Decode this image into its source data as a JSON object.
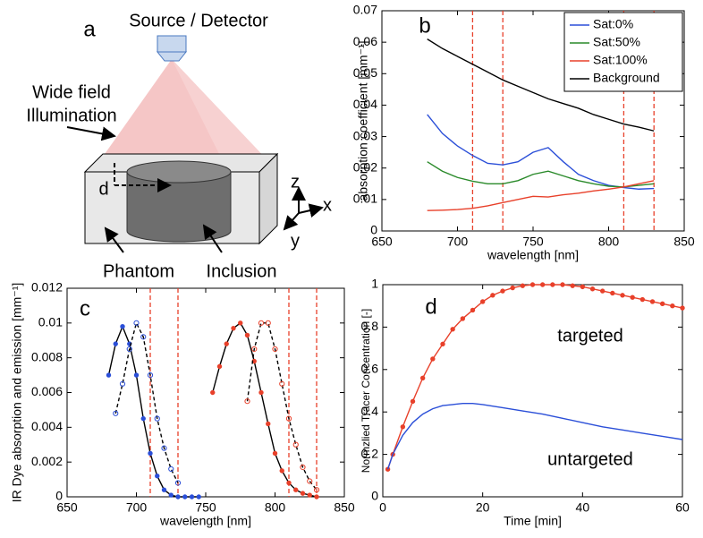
{
  "diagram": {
    "panel": "a",
    "source": "Source / Detector",
    "illumination": [
      "Wide field",
      "Illumination"
    ],
    "depth": "d",
    "phantom": "Phantom",
    "inclusion": "Inclusion",
    "axes": [
      "z",
      "x",
      "y"
    ]
  },
  "chart_data": [
    {
      "type": "line",
      "panel": "b",
      "xlabel": "wavelength [nm]",
      "ylabel": "absorption coefficient [mm⁻¹]",
      "xlim": [
        650,
        850
      ],
      "xticks": [
        650,
        700,
        750,
        800,
        850
      ],
      "ylim": [
        0,
        0.07
      ],
      "yticks": [
        0,
        0.01,
        0.02,
        0.03,
        0.04,
        0.05,
        0.06,
        0.07
      ],
      "vlines": [
        710,
        730,
        810,
        830
      ],
      "vline_color": "#e8402a",
      "legend": "upper right",
      "x": [
        680,
        690,
        700,
        710,
        720,
        730,
        740,
        750,
        760,
        770,
        780,
        790,
        800,
        810,
        820,
        830
      ],
      "series": [
        {
          "name": "Sat:0%",
          "color": "#2b4fd8",
          "values": [
            0.037,
            0.031,
            0.027,
            0.024,
            0.0215,
            0.021,
            0.022,
            0.025,
            0.0265,
            0.022,
            0.018,
            0.016,
            0.0145,
            0.0138,
            0.0133,
            0.0135
          ]
        },
        {
          "name": "Sat:50%",
          "color": "#2a8a2a",
          "values": [
            0.022,
            0.019,
            0.017,
            0.0158,
            0.015,
            0.015,
            0.016,
            0.018,
            0.019,
            0.0175,
            0.016,
            0.015,
            0.0142,
            0.014,
            0.0145,
            0.015
          ]
        },
        {
          "name": "Sat:100%",
          "color": "#e8402a",
          "values": [
            0.0065,
            0.0066,
            0.0068,
            0.0072,
            0.008,
            0.009,
            0.01,
            0.011,
            0.0108,
            0.0115,
            0.012,
            0.0127,
            0.0133,
            0.014,
            0.015,
            0.016
          ]
        },
        {
          "name": "Background",
          "color": "#000000",
          "values": [
            0.061,
            0.058,
            0.0555,
            0.053,
            0.0505,
            0.048,
            0.046,
            0.044,
            0.042,
            0.0405,
            0.039,
            0.037,
            0.0355,
            0.034,
            0.033,
            0.0318
          ]
        }
      ]
    },
    {
      "type": "line",
      "panel": "c",
      "xlabel": "wavelength [nm]",
      "ylabel": "IR Dye absorption and emission [mm⁻¹]",
      "xlim": [
        650,
        850
      ],
      "xticks": [
        650,
        700,
        750,
        800,
        850
      ],
      "ylim": [
        0,
        0.012
      ],
      "yticks": [
        0,
        0.002,
        0.004,
        0.006,
        0.008,
        0.01,
        0.012
      ],
      "vlines": [
        710,
        730,
        810,
        830
      ],
      "vline_color": "#e8402a",
      "series": [
        {
          "color": "#2b4fd8",
          "line_color": "#000000",
          "marker": "dot",
          "x": [
            680,
            685,
            690,
            695,
            700,
            705,
            710,
            715,
            720,
            725,
            730,
            735,
            740,
            745
          ],
          "values": [
            0.007,
            0.0088,
            0.0098,
            0.0088,
            0.007,
            0.0045,
            0.0025,
            0.0012,
            0.0004,
            0.0001,
            0,
            0,
            0,
            0
          ]
        },
        {
          "color": "#2b4fd8",
          "line_color": "#000000",
          "marker": "circle",
          "dash": true,
          "x": [
            685,
            690,
            695,
            700,
            705,
            710,
            715,
            720,
            725,
            730
          ],
          "values": [
            0.0048,
            0.0065,
            0.0085,
            0.01,
            0.0092,
            0.007,
            0.0045,
            0.0028,
            0.0016,
            0.0008
          ]
        },
        {
          "color": "#e8402a",
          "line_color": "#000000",
          "marker": "dot",
          "x": [
            755,
            760,
            765,
            770,
            775,
            780,
            785,
            790,
            795,
            800,
            805,
            810,
            815,
            820,
            825,
            830
          ],
          "values": [
            0.006,
            0.0075,
            0.0088,
            0.0097,
            0.01,
            0.0093,
            0.0078,
            0.006,
            0.0042,
            0.0025,
            0.0015,
            0.0008,
            0.0004,
            0.0002,
            0.0001,
            0
          ]
        },
        {
          "color": "#e8402a",
          "line_color": "#000000",
          "marker": "circle",
          "dash": true,
          "x": [
            780,
            785,
            790,
            795,
            800,
            805,
            810,
            815,
            820,
            825,
            830
          ],
          "values": [
            0.0055,
            0.0085,
            0.01,
            0.01,
            0.0085,
            0.0065,
            0.0045,
            0.003,
            0.0017,
            0.0009,
            0.0004
          ]
        }
      ]
    },
    {
      "type": "line",
      "panel": "d",
      "xlabel": "Time [min]",
      "ylabel": "Normzlied Tracer Concentration [-]",
      "xlim": [
        0,
        60
      ],
      "xticks": [
        0,
        20,
        40,
        60
      ],
      "ylim": [
        0,
        1
      ],
      "yticks": [
        0,
        0.2,
        0.4,
        0.6,
        0.8,
        1
      ],
      "annotations": [
        "targeted",
        "untargeted"
      ],
      "series": [
        {
          "color": "#e8402a",
          "marker": "dot",
          "x": [
            1,
            2,
            4,
            6,
            8,
            10,
            12,
            14,
            16,
            18,
            20,
            22,
            24,
            26,
            28,
            30,
            32,
            34,
            36,
            38,
            40,
            42,
            44,
            46,
            48,
            50,
            52,
            54,
            56,
            58,
            60
          ],
          "values": [
            0.13,
            0.2,
            0.33,
            0.45,
            0.56,
            0.65,
            0.72,
            0.79,
            0.84,
            0.88,
            0.92,
            0.95,
            0.97,
            0.985,
            0.995,
            1.0,
            1.0,
            1.0,
            1.0,
            0.995,
            0.99,
            0.98,
            0.97,
            0.96,
            0.95,
            0.94,
            0.93,
            0.92,
            0.91,
            0.9,
            0.89
          ]
        },
        {
          "color": "#2b4fd8",
          "x": [
            1,
            2,
            4,
            6,
            8,
            10,
            12,
            14,
            16,
            18,
            20,
            24,
            28,
            32,
            36,
            40,
            44,
            48,
            52,
            56,
            60
          ],
          "values": [
            0.13,
            0.2,
            0.29,
            0.35,
            0.39,
            0.415,
            0.43,
            0.435,
            0.44,
            0.44,
            0.435,
            0.42,
            0.405,
            0.39,
            0.37,
            0.35,
            0.33,
            0.315,
            0.3,
            0.285,
            0.27
          ]
        }
      ]
    }
  ]
}
